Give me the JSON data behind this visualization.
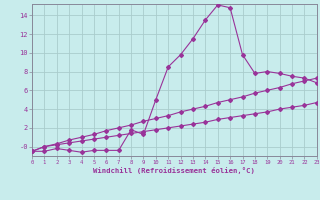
{
  "xlabel": "Windchill (Refroidissement éolien,°C)",
  "bg_color": "#c8ecec",
  "grid_color": "#aacccc",
  "line_color": "#993399",
  "axis_color": "#888899",
  "xlim": [
    0,
    23
  ],
  "ylim": [
    -1.0,
    15.2
  ],
  "xticks": [
    0,
    1,
    2,
    3,
    4,
    5,
    6,
    7,
    8,
    9,
    10,
    11,
    12,
    13,
    14,
    15,
    16,
    17,
    18,
    19,
    20,
    21,
    22,
    23
  ],
  "yticks": [
    0,
    2,
    4,
    6,
    8,
    10,
    12,
    14
  ],
  "ytick_labels": [
    "-0",
    "2",
    "4",
    "6",
    "8",
    "10",
    "12",
    "14"
  ],
  "curve1_x": [
    0,
    1,
    2,
    3,
    4,
    5,
    6,
    7,
    8,
    9,
    10,
    11,
    12,
    13,
    14,
    15,
    16,
    17,
    18,
    19,
    20,
    21,
    22,
    23
  ],
  "curve1_y": [
    -0.5,
    -0.5,
    -0.2,
    -0.4,
    -0.6,
    -0.4,
    -0.4,
    -0.4,
    1.8,
    1.3,
    5.0,
    8.5,
    9.8,
    11.5,
    13.5,
    15.1,
    14.8,
    9.8,
    7.8,
    8.0,
    7.8,
    7.5,
    7.3,
    6.8
  ],
  "curve2_x": [
    0,
    1,
    2,
    3,
    4,
    5,
    6,
    7,
    8,
    9,
    10,
    11,
    12,
    13,
    14,
    15,
    16,
    17,
    18,
    19,
    20,
    21,
    22,
    23
  ],
  "curve2_y": [
    -0.5,
    0.0,
    0.3,
    0.7,
    1.0,
    1.3,
    1.7,
    2.0,
    2.3,
    2.7,
    3.0,
    3.3,
    3.7,
    4.0,
    4.3,
    4.7,
    5.0,
    5.3,
    5.7,
    6.0,
    6.3,
    6.7,
    7.0,
    7.3
  ],
  "curve3_x": [
    0,
    1,
    2,
    3,
    4,
    5,
    6,
    7,
    8,
    9,
    10,
    11,
    12,
    13,
    14,
    15,
    16,
    17,
    18,
    19,
    20,
    21,
    22,
    23
  ],
  "curve3_y": [
    -0.5,
    0.0,
    0.2,
    0.4,
    0.6,
    0.8,
    1.0,
    1.2,
    1.4,
    1.6,
    1.8,
    2.0,
    2.2,
    2.4,
    2.6,
    2.9,
    3.1,
    3.3,
    3.5,
    3.7,
    4.0,
    4.2,
    4.4,
    4.7
  ]
}
